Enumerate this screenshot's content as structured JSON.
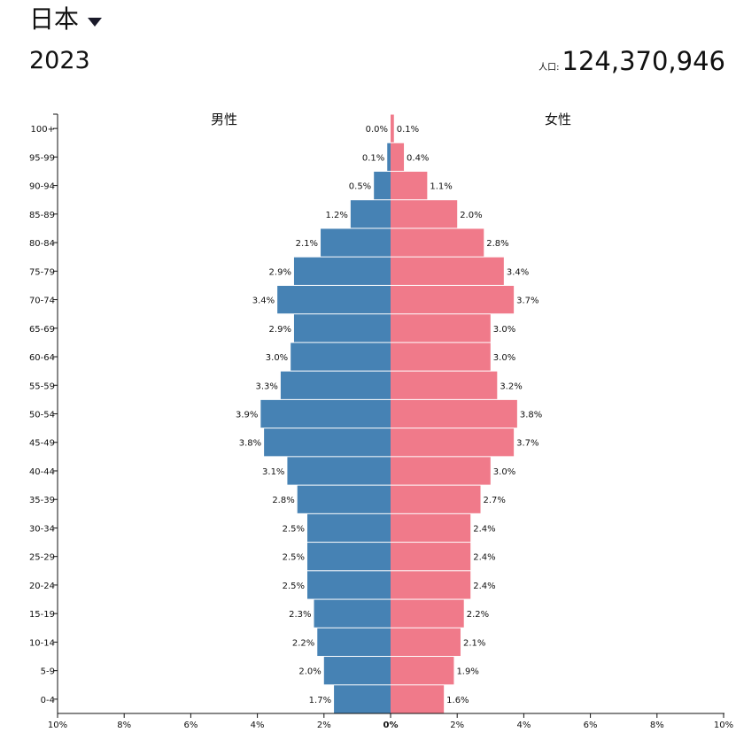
{
  "header": {
    "country": "日本",
    "country_icon": "caret-down-icon",
    "year": "2023",
    "population_label": "人口:",
    "population_value": "124,370,946"
  },
  "colors": {
    "male": "#4682b4",
    "female": "#f07a8a"
  },
  "chart_data": {
    "type": "bar",
    "orientation": "horizontal-population-pyramid",
    "categories": [
      "0-4",
      "5-9",
      "10-14",
      "15-19",
      "20-24",
      "25-29",
      "30-34",
      "35-39",
      "40-44",
      "45-49",
      "50-54",
      "55-59",
      "60-64",
      "65-69",
      "70-74",
      "75-79",
      "80-84",
      "85-89",
      "90-94",
      "95-99",
      "100+"
    ],
    "series": [
      {
        "name": "男性",
        "values": [
          1.7,
          2.0,
          2.2,
          2.3,
          2.5,
          2.5,
          2.5,
          2.8,
          3.1,
          3.8,
          3.9,
          3.3,
          3.0,
          2.9,
          3.4,
          2.9,
          2.1,
          1.2,
          0.5,
          0.1,
          0.0
        ],
        "labels": [
          "1.7%",
          "2.0%",
          "2.2%",
          "2.3%",
          "2.5%",
          "2.5%",
          "2.5%",
          "2.8%",
          "3.1%",
          "3.8%",
          "3.9%",
          "3.3%",
          "3.0%",
          "2.9%",
          "3.4%",
          "2.9%",
          "2.1%",
          "1.2%",
          "0.5%",
          "0.1%",
          "0.0%"
        ]
      },
      {
        "name": "女性",
        "values": [
          1.6,
          1.9,
          2.1,
          2.2,
          2.4,
          2.4,
          2.4,
          2.7,
          3.0,
          3.7,
          3.8,
          3.2,
          3.0,
          3.0,
          3.7,
          3.4,
          2.8,
          2.0,
          1.1,
          0.4,
          0.1
        ],
        "labels": [
          "1.6%",
          "1.9%",
          "2.1%",
          "2.2%",
          "2.4%",
          "2.4%",
          "2.4%",
          "2.7%",
          "3.0%",
          "3.7%",
          "3.8%",
          "3.2%",
          "3.0%",
          "3.0%",
          "3.7%",
          "3.4%",
          "2.8%",
          "2.0%",
          "1.1%",
          "0.4%",
          "0.1%"
        ]
      }
    ],
    "x_ticks": [
      "10%",
      "8%",
      "6%",
      "4%",
      "2%",
      "0%",
      "2%",
      "4%",
      "6%",
      "8%",
      "10%"
    ],
    "xlim": [
      -10,
      10
    ],
    "grid": false
  }
}
